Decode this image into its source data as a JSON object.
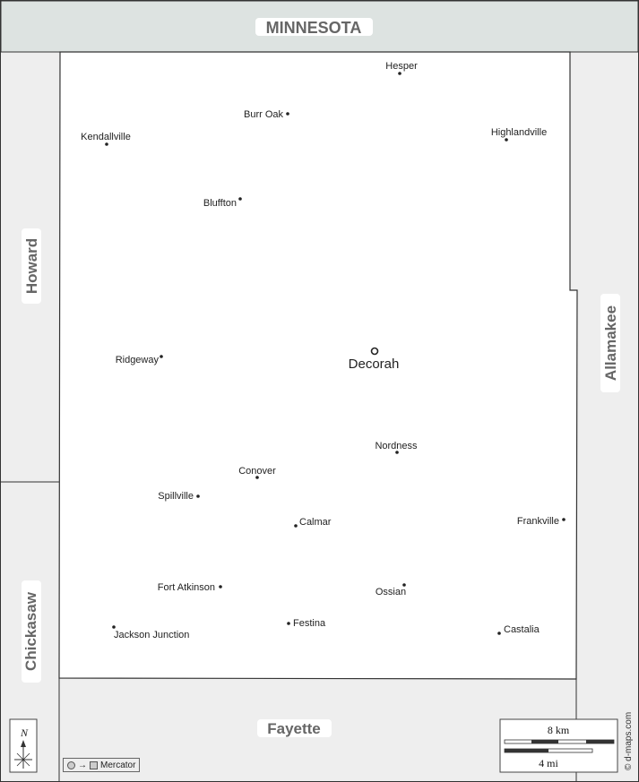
{
  "colors": {
    "neighbor_fill": "#eeeeee",
    "top_neighbor_fill": "#dde3e1",
    "county_fill": "#ffffff",
    "border": "#333333",
    "label_bg": "#ffffff"
  },
  "neighbors": {
    "north": "MINNESOTA",
    "west_upper": "Howard",
    "west_lower": "Chickasaw",
    "east": "Allamakee",
    "south": "Fayette"
  },
  "county_seat": {
    "name": "Decorah",
    "symbol": "circle-ring"
  },
  "towns": [
    {
      "name": "Hesper"
    },
    {
      "name": "Burr Oak"
    },
    {
      "name": "Kendallville"
    },
    {
      "name": "Highlandville"
    },
    {
      "name": "Bluffton"
    },
    {
      "name": "Ridgeway"
    },
    {
      "name": "Nordness"
    },
    {
      "name": "Conover"
    },
    {
      "name": "Spillville"
    },
    {
      "name": "Calmar"
    },
    {
      "name": "Frankville"
    },
    {
      "name": "Fort Atkinson"
    },
    {
      "name": "Ossian"
    },
    {
      "name": "Festina"
    },
    {
      "name": "Jackson Junction"
    },
    {
      "name": "Castalia"
    }
  ],
  "compass": {
    "label": "N",
    "icon": "north-arrow-icon"
  },
  "scale": {
    "km_label": "8 km",
    "mi_label": "4 mi"
  },
  "projection": {
    "label": "Mercator",
    "arrow": "→"
  },
  "credit": "© d-maps.com"
}
